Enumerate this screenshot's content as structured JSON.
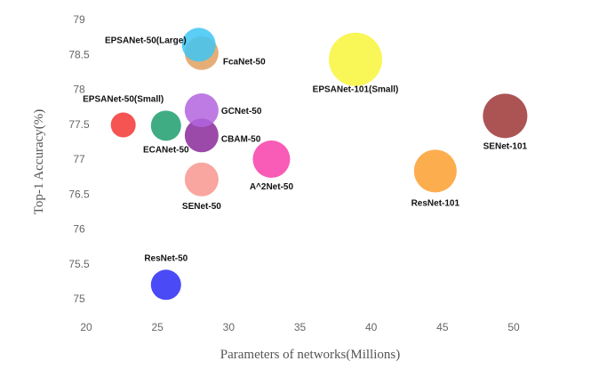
{
  "chart_data": {
    "type": "scatter",
    "title": "",
    "xlabel": "Parameters of networks(Millions)",
    "ylabel": "Top-1 Accuracy(%)",
    "xlim": [
      20,
      50
    ],
    "ylim": [
      75,
      79
    ],
    "xticks": [
      20,
      25,
      30,
      35,
      40,
      45,
      50
    ],
    "yticks": [
      75,
      75.5,
      76,
      76.5,
      77,
      77.5,
      78,
      78.5,
      79
    ],
    "grid": false,
    "points": [
      {
        "name": "ResNet-50",
        "x": 25.6,
        "y": 75.2,
        "color": "#2a2af5"
      },
      {
        "name": "SENet-50",
        "x": 28.1,
        "y": 76.71,
        "color": "#f7968e"
      },
      {
        "name": "A^2Net-50",
        "x": 33.0,
        "y": 77.0,
        "color": "#f73faa"
      },
      {
        "name": "CBAM-50",
        "x": 28.1,
        "y": 77.34,
        "color": "#8a2a9a"
      },
      {
        "name": "ECANet-50",
        "x": 25.6,
        "y": 77.48,
        "color": "#1f9e6e"
      },
      {
        "name": "EPSANet-50(Small)",
        "x": 22.6,
        "y": 77.49,
        "color": "#f53535"
      },
      {
        "name": "GCNet-50",
        "x": 28.1,
        "y": 77.7,
        "color": "#b164de"
      },
      {
        "name": "FcaNet-50",
        "x": 28.1,
        "y": 78.52,
        "color": "#e0a060"
      },
      {
        "name": "EPSANet-50(Large)",
        "x": 27.9,
        "y": 78.64,
        "color": "#3ec5f5"
      },
      {
        "name": "EPSANet-101(Small)",
        "x": 38.9,
        "y": 78.43,
        "color": "#f8f53a"
      },
      {
        "name": "ResNet-101",
        "x": 44.5,
        "y": 76.83,
        "color": "#fba030"
      },
      {
        "name": "SENet-101",
        "x": 49.4,
        "y": 77.62,
        "color": "#9e3535"
      }
    ]
  }
}
